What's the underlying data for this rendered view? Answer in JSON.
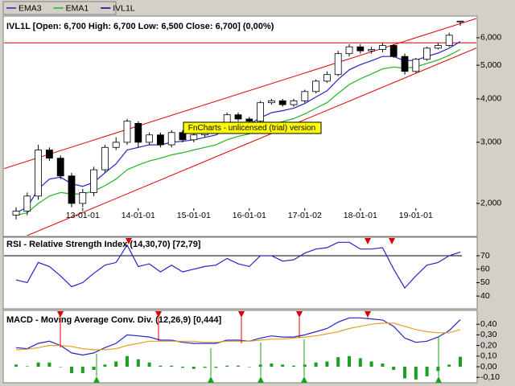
{
  "chart_data": [
    {
      "type": "candlestick",
      "title": "IVL1L [Open: 6,700  High: 6,700  Low: 6,500  Close: 6,700] (0,00%)",
      "watermark": "FnCharts - unlicensed (trial) version",
      "candle_series": {
        "name": "IVL1L",
        "color": "#000080"
      },
      "categories": [
        null,
        null,
        null,
        null,
        null,
        null,
        "13-01-01",
        null,
        null,
        null,
        null,
        "14-01-01",
        null,
        null,
        null,
        null,
        "15-01-01",
        null,
        null,
        null,
        null,
        "16-01-01",
        null,
        null,
        null,
        null,
        "17-01-02",
        null,
        null,
        null,
        null,
        "18-01-01",
        null,
        null,
        null,
        null,
        "19-01-01",
        null,
        null,
        null,
        null
      ],
      "open": [
        1850,
        1900,
        2100,
        2850,
        2700,
        2400,
        2000,
        2150,
        2500,
        2900,
        3000,
        3400,
        3000,
        3150,
        2950,
        3200,
        3050,
        3150,
        3250,
        3300,
        3600,
        3500,
        3450,
        3900,
        3950,
        3850,
        3950,
        4200,
        4500,
        4700,
        5400,
        5650,
        5500,
        5550,
        5700,
        5300,
        4800,
        5200,
        5600,
        5700,
        6700
      ],
      "high": [
        1950,
        2150,
        2950,
        2900,
        2750,
        2450,
        2200,
        2550,
        2950,
        3100,
        3500,
        3450,
        3200,
        3200,
        3250,
        3250,
        3200,
        3300,
        3350,
        3650,
        3650,
        3550,
        3950,
        4000,
        4000,
        4000,
        4250,
        4550,
        4800,
        5500,
        5750,
        5750,
        5650,
        5800,
        5750,
        5400,
        5250,
        5650,
        5800,
        6200,
        6700
      ],
      "low": [
        1800,
        1850,
        2050,
        2650,
        2350,
        1950,
        1950,
        2100,
        2450,
        2850,
        2950,
        2900,
        2950,
        2900,
        2900,
        3000,
        3000,
        3100,
        3200,
        3250,
        3450,
        3400,
        3400,
        3850,
        3800,
        3800,
        3900,
        4150,
        4450,
        4650,
        5300,
        5400,
        5400,
        5450,
        5250,
        4700,
        4750,
        5150,
        5550,
        5650,
        6500
      ],
      "close": [
        1900,
        2100,
        2850,
        2700,
        2400,
        2000,
        2150,
        2500,
        2900,
        3000,
        3450,
        3000,
        3150,
        2950,
        3200,
        3050,
        3150,
        3250,
        3300,
        3600,
        3500,
        3450,
        3900,
        3950,
        3850,
        3950,
        4200,
        4500,
        4700,
        5400,
        5650,
        5500,
        5550,
        5700,
        5300,
        4800,
        5200,
        5600,
        5700,
        6100,
        6700
      ],
      "series": [
        {
          "name": "EMA3",
          "color": "#2424c8",
          "values": [
            1880,
            1950,
            2200,
            2350,
            2380,
            2280,
            2240,
            2300,
            2450,
            2600,
            2850,
            2900,
            2950,
            2950,
            3000,
            3020,
            3050,
            3100,
            3150,
            3280,
            3350,
            3380,
            3530,
            3650,
            3700,
            3760,
            3880,
            4050,
            4220,
            4550,
            4850,
            5020,
            5150,
            5300,
            5300,
            5150,
            5170,
            5300,
            5420,
            5600,
            5850
          ]
        },
        {
          "name": "EMA1",
          "color": "#22b422",
          "values": [
            1850,
            1880,
            2000,
            2100,
            2150,
            2130,
            2130,
            2170,
            2250,
            2350,
            2500,
            2580,
            2650,
            2700,
            2760,
            2800,
            2850,
            2900,
            2950,
            3050,
            3120,
            3170,
            3280,
            3380,
            3440,
            3510,
            3620,
            3760,
            3900,
            4150,
            4400,
            4570,
            4720,
            4880,
            4940,
            4900,
            4950,
            5060,
            5180,
            5340,
            5550
          ]
        }
      ],
      "trendlines": [
        {
          "start": {
            "index": 0,
            "value": 2585
          },
          "end": {
            "index": 40,
            "value": 6590
          }
        },
        {
          "start": {
            "index": 0,
            "value": 1567
          },
          "end": {
            "index": 40,
            "value": 5360
          }
        }
      ],
      "hline": 5800,
      "line_color": "#e00000",
      "log_scale": true,
      "ylim": [
        1713,
        6853
      ],
      "yticks": [
        {
          "value": 2000,
          "label": "2,000"
        },
        {
          "value": 3000,
          "label": "3,000"
        },
        {
          "value": 4000,
          "label": "4,000"
        },
        {
          "value": 5000,
          "label": "5,000"
        },
        {
          "value": 6000,
          "label": "6,000"
        }
      ]
    },
    {
      "type": "line",
      "title": "RSI - Relative Strength Index (14,30,70) [72,79]",
      "color": "#2424c8",
      "values": [
        52,
        50,
        65,
        62,
        55,
        47,
        50,
        57,
        63,
        65,
        78,
        62,
        64,
        58,
        63,
        58,
        60,
        62,
        63,
        68,
        64,
        62,
        70,
        70,
        66,
        67,
        72,
        75,
        76,
        80,
        80,
        75,
        75,
        76,
        60,
        46,
        55,
        63,
        65,
        70,
        72.79
      ],
      "levels": [
        70
      ],
      "ylim": [
        32.3,
        82.6
      ],
      "yticks": [
        40,
        50,
        60,
        70
      ]
    },
    {
      "type": "combo",
      "title": "MACD - Moving Average Conv. Div. (12,26,9) [0,444]",
      "series": [
        {
          "color": "#2424c8",
          "values": [
            0.18,
            0.17,
            0.22,
            0.24,
            0.2,
            0.13,
            0.11,
            0.13,
            0.18,
            0.22,
            0.3,
            0.29,
            0.28,
            0.25,
            0.25,
            0.23,
            0.22,
            0.22,
            0.22,
            0.25,
            0.25,
            0.24,
            0.27,
            0.29,
            0.28,
            0.28,
            0.3,
            0.33,
            0.36,
            0.42,
            0.46,
            0.46,
            0.45,
            0.44,
            0.38,
            0.27,
            0.23,
            0.24,
            0.28,
            0.34,
            0.444
          ]
        },
        {
          "color": "#e8a020",
          "values": [
            0.16,
            0.165,
            0.18,
            0.2,
            0.2,
            0.19,
            0.17,
            0.16,
            0.16,
            0.17,
            0.2,
            0.22,
            0.24,
            0.24,
            0.24,
            0.24,
            0.24,
            0.23,
            0.23,
            0.24,
            0.24,
            0.24,
            0.25,
            0.26,
            0.26,
            0.27,
            0.28,
            0.29,
            0.31,
            0.33,
            0.36,
            0.38,
            0.4,
            0.41,
            0.41,
            0.38,
            0.35,
            0.33,
            0.32,
            0.32,
            0.35
          ]
        }
      ],
      "histogram": {
        "color": "#1aa01a",
        "values": [
          0.02,
          0.005,
          0.04,
          0.04,
          0,
          -0.06,
          -0.06,
          -0.03,
          0.02,
          0.05,
          0.1,
          0.07,
          0.04,
          0.01,
          0.01,
          -0.01,
          -0.02,
          -0.01,
          -0.01,
          0.01,
          0.01,
          0,
          0.02,
          0.03,
          0.02,
          0.01,
          0.02,
          0.04,
          0.05,
          0.09,
          0.1,
          0.08,
          0.05,
          0.03,
          -0.03,
          -0.11,
          -0.12,
          -0.09,
          -0.04,
          0.02,
          0.094
        ]
      },
      "ylim": [
        -0.136,
        0.5
      ],
      "yticks": [
        {
          "value": -0.1,
          "label": "-0,10"
        },
        {
          "value": 0,
          "label": "0,00"
        },
        {
          "value": 0.1,
          "label": "0,10"
        },
        {
          "value": 0.2,
          "label": "0,20"
        },
        {
          "value": 0.3,
          "label": "0,30"
        },
        {
          "value": 0.4,
          "label": "0,40"
        }
      ]
    }
  ]
}
